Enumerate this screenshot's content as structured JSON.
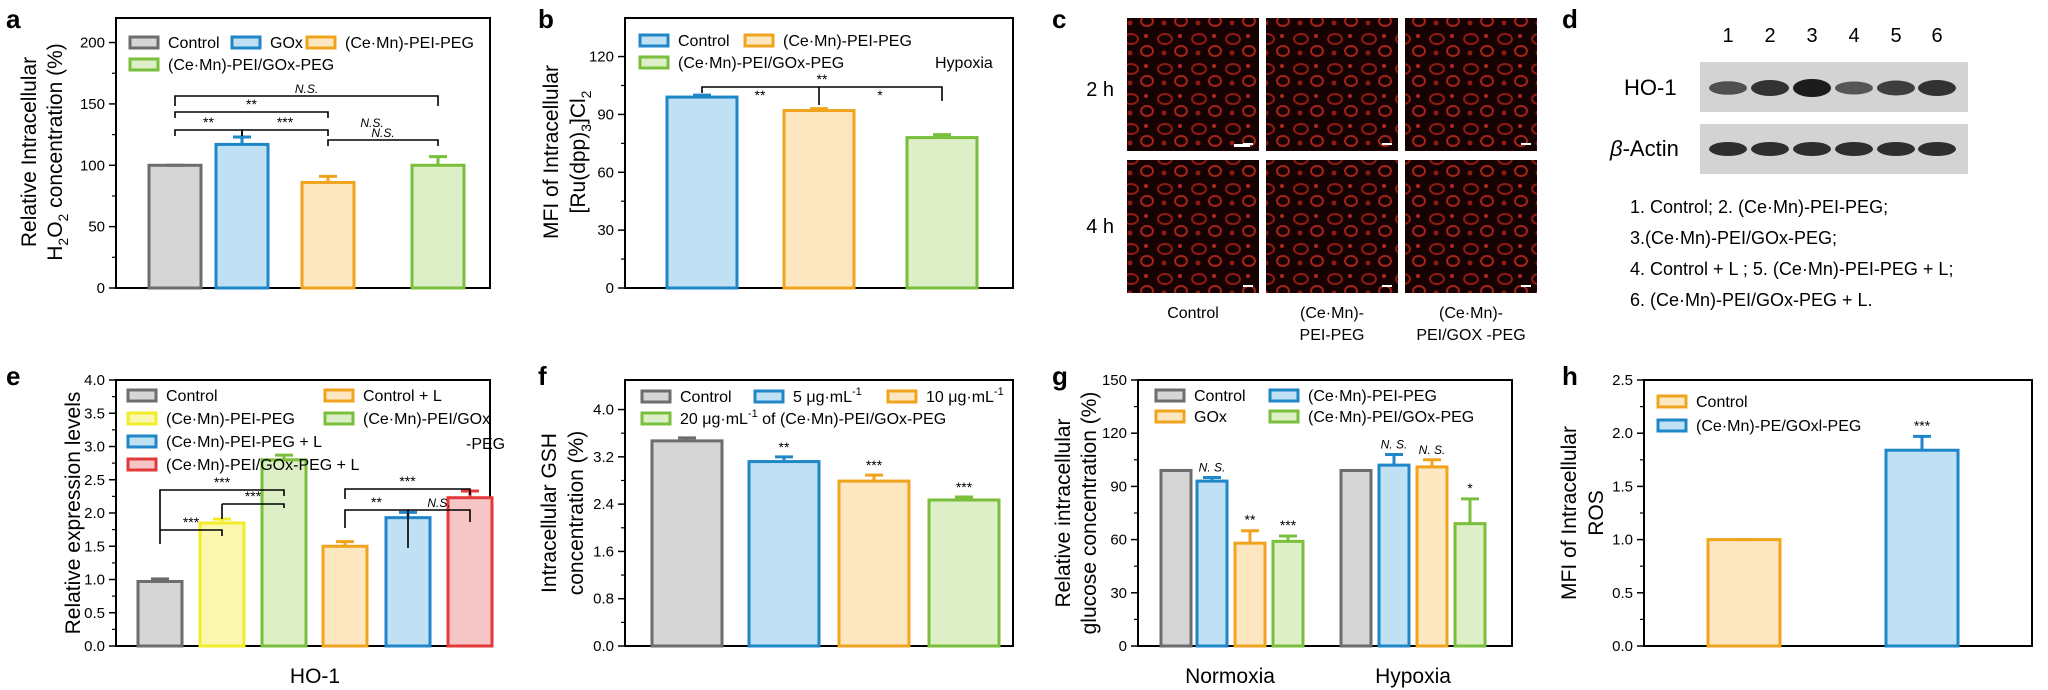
{
  "colors": {
    "gray_edge": "#6d6d6d",
    "gray_fill": "#d6d6d6",
    "blue_edge": "#1f86c8",
    "blue_fill": "#bfe1f3",
    "orange_edge": "#f0a41e",
    "orange_fill": "#fde7c1",
    "green_edge": "#79bf3c",
    "green_fill": "#dcefc6",
    "yellow_edge": "#f2ec2a",
    "yellow_fill": "#fbf7ae",
    "red_edge": "#e23a3a",
    "red_fill": "#f6c5c5"
  },
  "panels": {
    "a": {
      "letter": "a"
    },
    "b": {
      "letter": "b"
    },
    "c": {
      "letter": "c"
    },
    "d": {
      "letter": "d"
    },
    "e": {
      "letter": "e"
    },
    "f": {
      "letter": "f"
    },
    "g": {
      "letter": "g"
    },
    "h": {
      "letter": "h"
    }
  },
  "chart_data": [
    {
      "id": "a",
      "type": "bar",
      "ylabel_line1": "Relative Intracellular",
      "ylabel_line2_pre": "H",
      "ylabel_line2_sub": "2",
      "ylabel_line2_mid": "O",
      "ylabel_line2_sub2": "2",
      "ylabel_line2_post": " concentration (%)",
      "ylim": [
        0,
        220
      ],
      "yticks": [
        "0",
        "50",
        "100",
        "150",
        "200"
      ],
      "categories": [
        "Control",
        "GOx",
        "(Ce·Mn)-PEI-PEG",
        "(Ce·Mn)-PEI/GOx-PEG"
      ],
      "values": [
        100,
        117,
        86,
        100
      ],
      "errors": [
        0,
        6,
        5,
        7
      ],
      "colors": [
        "gray",
        "blue",
        "orange",
        "green"
      ],
      "legend": [
        "Control",
        "GOx",
        "(Ce·Mn)-PEI-PEG",
        "(Ce·Mn)-PEI/GOx-PEG"
      ],
      "annotations": [
        "N.S.",
        "**",
        "**",
        "***",
        "N.S.",
        "N.S."
      ]
    },
    {
      "id": "b",
      "type": "bar",
      "ylabel_line1": "MFI of Intracellular",
      "ylabel_line2_pre": "[Ru(dpp)",
      "ylabel_line2_sub": "3",
      "ylabel_line2_mid": "]Cl",
      "ylabel_line2_sub2": "2",
      "ylabel_line2_post": "",
      "ylim": [
        0,
        140
      ],
      "yticks": [
        "0",
        "30",
        "60",
        "90",
        "120"
      ],
      "categories": [
        "Control",
        "(Ce·Mn)-PEI-PEG",
        "(Ce·Mn)-PEI/GOx-PEG"
      ],
      "values": [
        99,
        92,
        78
      ],
      "errors": [
        1,
        1,
        1.5
      ],
      "colors": [
        "blue",
        "orange",
        "green"
      ],
      "legend": [
        "Control",
        "(Ce·Mn)-PEI-PEG",
        "(Ce·Mn)-PEI/GOx-PEG"
      ],
      "note": "Hypoxia",
      "annotations": [
        "**",
        "**",
        "*"
      ]
    },
    {
      "id": "e",
      "type": "bar",
      "ylabel": "Relative expression levels",
      "xlabel": "HO-1",
      "ylim": [
        0,
        4.0
      ],
      "yticks": [
        "0.0",
        "0.5",
        "1.0",
        "1.5",
        "2.0",
        "2.5",
        "3.0",
        "3.5",
        "4.0"
      ],
      "categories": [
        "Control",
        "(Ce·Mn)-PEI-PEG",
        "(Ce·Mn)-PEI/GOx-PEG",
        "Control + L",
        "(Ce·Mn)-PEI-PEG + L",
        "(Ce·Mn)-PEI/GOx-PEG + L"
      ],
      "values": [
        0.97,
        1.85,
        2.8,
        1.5,
        1.93,
        2.23
      ],
      "errors": [
        0.04,
        0.06,
        0.07,
        0.07,
        0.08,
        0.1
      ],
      "colors": [
        "gray",
        "yellow",
        "green",
        "orange",
        "blue",
        "red"
      ],
      "legend": [
        "Control",
        "Control + L",
        "(Ce·Mn)-PEI-PEG",
        "(Ce·Mn)-PEI/GOx",
        "(Ce·Mn)-PEI-PEG + L",
        "(Ce·Mn)-PEI/GOx-PEG + L"
      ],
      "legend_extra": "-PEG",
      "annotations": [
        "***",
        "***",
        "***",
        "**",
        "***",
        "N.S."
      ]
    },
    {
      "id": "f",
      "type": "bar",
      "ylabel_line1": "Intracellular GSH",
      "ylabel_line2": "concentration (%)",
      "ylim": [
        0,
        4.5
      ],
      "yticks": [
        "0.0",
        "0.8",
        "1.6",
        "2.4",
        "3.2",
        "4.0"
      ],
      "categories": [
        "Control",
        "5 μg·mL-1",
        "10 μg·mL-1",
        "20 μg·mL-1"
      ],
      "values": [
        3.47,
        3.12,
        2.79,
        2.47
      ],
      "errors": [
        0.05,
        0.08,
        0.1,
        0.05
      ],
      "colors": [
        "gray",
        "blue",
        "orange",
        "green"
      ],
      "legend_control": "Control",
      "legend_5": "5 μg·mL",
      "legend_10": "10 μg·mL",
      "legend_20": "20 μg·mL",
      "legend_sup": "-1",
      "legend_suffix": " of (Ce·Mn)-PEI/GOx-PEG",
      "annotations": [
        "**",
        "***",
        "***"
      ]
    },
    {
      "id": "g",
      "type": "bar",
      "ylabel_line1": "Relative intracellular",
      "ylabel_line2": "glucose concentration (%)",
      "ylim": [
        0,
        150
      ],
      "yticks": [
        "0",
        "30",
        "60",
        "90",
        "120",
        "150"
      ],
      "groups": [
        "Normoxia",
        "Hypoxia"
      ],
      "series": [
        {
          "name": "Control",
          "color": "gray",
          "values": [
            99,
            99
          ],
          "errors": [
            0,
            0
          ]
        },
        {
          "name": "(Ce·Mn)-PEI-PEG",
          "color": "blue",
          "values": [
            93,
            102
          ],
          "errors": [
            2,
            6
          ]
        },
        {
          "name": "GOx",
          "color": "orange",
          "values": [
            58,
            101
          ],
          "errors": [
            7,
            4
          ]
        },
        {
          "name": "(Ce·Mn)-PEI/GOx-PEG",
          "color": "green",
          "values": [
            59,
            69
          ],
          "errors": [
            3,
            14
          ]
        }
      ],
      "legend": [
        "Control",
        "(Ce·Mn)-PEI-PEG",
        "GOx",
        "(Ce·Mn)-PEI/GOx-PEG"
      ],
      "annotations": [
        [
          "",
          "N. S.",
          "**",
          "***"
        ],
        [
          "",
          "N. S.",
          "N. S.",
          "*"
        ]
      ]
    },
    {
      "id": "h",
      "type": "bar",
      "ylabel_line1": "MFI of Intracellular",
      "ylabel_line2": "ROS",
      "ylim": [
        0,
        2.5
      ],
      "yticks": [
        "0.0",
        "0.5",
        "1.0",
        "1.5",
        "2.0",
        "2.5"
      ],
      "categories": [
        "Control",
        "(Ce·Mn)-PE/GOxl-PEG"
      ],
      "values": [
        1.0,
        1.84
      ],
      "errors": [
        0,
        0.13
      ],
      "colors": [
        "orange",
        "blue"
      ],
      "legend": [
        "Control",
        "(Ce·Mn)-PE/GOxl-PEG"
      ],
      "annotations": [
        "***"
      ]
    }
  ],
  "panel_c": {
    "row_labels": [
      "2 h",
      "4 h"
    ],
    "col_labels": [
      [
        "Control"
      ],
      [
        "(Ce·Mn)-",
        "PEI-PEG"
      ],
      [
        "(Ce·Mn)-",
        "PEI/GOX -PEG"
      ]
    ]
  },
  "panel_d": {
    "lane_numbers": [
      "1",
      "2",
      "3",
      "4",
      "5",
      "6"
    ],
    "row_label_1": "HO-1",
    "row_label_2_italic": "β",
    "row_label_2_rest": "-Actin",
    "legend_lines": [
      "1. Control;  2. (Ce·Mn)-PEI-PEG;",
      "3.(Ce·Mn)-PEI/GOx-PEG;",
      "4. Control + L ; 5. (Ce·Mn)-PEI-PEG + L;",
      "6. (Ce·Mn)-PEI/GOx-PEG + L."
    ],
    "band_intensity_ho1": [
      0.55,
      0.8,
      1.0,
      0.5,
      0.7,
      0.8
    ],
    "band_intensity_actin": [
      0.8,
      0.8,
      0.8,
      0.8,
      0.8,
      0.8
    ]
  }
}
